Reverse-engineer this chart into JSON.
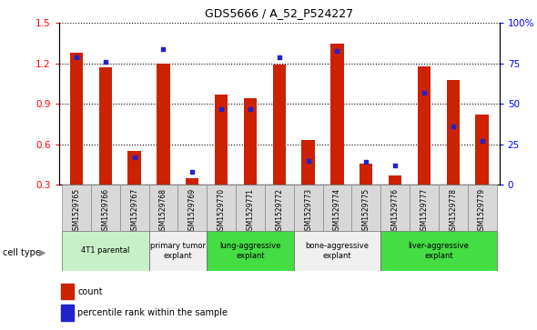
{
  "title": "GDS5666 / A_52_P524227",
  "samples": [
    "GSM1529765",
    "GSM1529766",
    "GSM1529767",
    "GSM1529768",
    "GSM1529769",
    "GSM1529770",
    "GSM1529771",
    "GSM1529772",
    "GSM1529773",
    "GSM1529774",
    "GSM1529775",
    "GSM1529776",
    "GSM1529777",
    "GSM1529778",
    "GSM1529779"
  ],
  "counts": [
    1.28,
    1.17,
    0.55,
    1.2,
    0.35,
    0.97,
    0.94,
    1.19,
    0.63,
    1.35,
    0.46,
    0.37,
    1.18,
    1.08,
    0.82
  ],
  "percentiles": [
    79,
    76,
    17,
    84,
    8,
    47,
    47,
    79,
    15,
    83,
    14,
    12,
    57,
    36,
    27
  ],
  "cell_types": [
    {
      "label": "4T1 parental",
      "start": 0,
      "end": 2,
      "color": "#c8f0c8"
    },
    {
      "label": "primary tumor\nexplant",
      "start": 3,
      "end": 4,
      "color": "#f0f0f0"
    },
    {
      "label": "lung-aggressive\nexplant",
      "start": 5,
      "end": 7,
      "color": "#44dd44"
    },
    {
      "label": "bone-aggressive\nexplant",
      "start": 8,
      "end": 10,
      "color": "#f0f0f0"
    },
    {
      "label": "liver-aggressive\nexplant",
      "start": 11,
      "end": 14,
      "color": "#44dd44"
    }
  ],
  "ylim_left": [
    0.3,
    1.5
  ],
  "ylim_right": [
    0,
    100
  ],
  "yticks_left": [
    0.3,
    0.6,
    0.9,
    1.2,
    1.5
  ],
  "yticks_right": [
    0,
    25,
    50,
    75,
    100
  ],
  "ytick_labels_right": [
    "0",
    "25",
    "50",
    "75",
    "100%"
  ],
  "bar_color": "#cc2200",
  "dot_color": "#2222cc",
  "tick_label_color": "#888888",
  "cell_type_label_green": "#44dd44",
  "cell_type_label_light": "#c8f0c8"
}
